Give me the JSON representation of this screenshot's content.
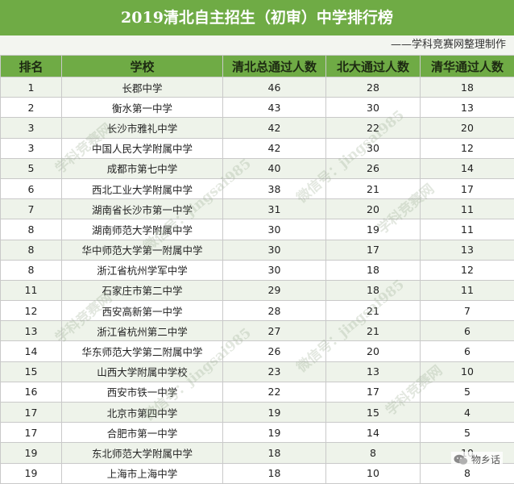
{
  "title": "2019清北自主招生（初审）中学排行榜",
  "subtitle": "——学科竞赛网整理制作",
  "columns": [
    "排名",
    "学校",
    "清北总通过人数",
    "北大通过人数",
    "清华通过人数"
  ],
  "rows": [
    [
      "1",
      "长郡中学",
      "46",
      "28",
      "18"
    ],
    [
      "2",
      "衡水第一中学",
      "43",
      "30",
      "13"
    ],
    [
      "3",
      "长沙市雅礼中学",
      "42",
      "22",
      "20"
    ],
    [
      "3",
      "中国人民大学附属中学",
      "42",
      "30",
      "12"
    ],
    [
      "5",
      "成都市第七中学",
      "40",
      "26",
      "14"
    ],
    [
      "6",
      "西北工业大学附属中学",
      "38",
      "21",
      "17"
    ],
    [
      "7",
      "湖南省长沙市第一中学",
      "31",
      "20",
      "11"
    ],
    [
      "8",
      "湖南师范大学附属中学",
      "30",
      "19",
      "11"
    ],
    [
      "8",
      "华中师范大学第一附属中学",
      "30",
      "17",
      "13"
    ],
    [
      "8",
      "浙江省杭州学军中学",
      "30",
      "18",
      "12"
    ],
    [
      "11",
      "石家庄市第二中学",
      "29",
      "18",
      "11"
    ],
    [
      "12",
      "西安高新第一中学",
      "28",
      "21",
      "7"
    ],
    [
      "13",
      "浙江省杭州第二中学",
      "27",
      "21",
      "6"
    ],
    [
      "14",
      "华东师范大学第二附属中学",
      "26",
      "20",
      "6"
    ],
    [
      "15",
      "山西大学附属中学校",
      "23",
      "13",
      "10"
    ],
    [
      "16",
      "西安市铁一中学",
      "22",
      "17",
      "5"
    ],
    [
      "17",
      "北京市第四中学",
      "19",
      "15",
      "4"
    ],
    [
      "17",
      "合肥市第一中学",
      "19",
      "14",
      "5"
    ],
    [
      "19",
      "东北师范大学附属中学",
      "18",
      "8",
      "10"
    ],
    [
      "19",
      "上海市上海中学",
      "18",
      "10",
      "8"
    ]
  ],
  "watermarks": [
    "学科竞赛网",
    "微信号：jingsai985"
  ],
  "wechat_badge": {
    "icon": "wechat-icon",
    "label": "物乡话"
  },
  "colors": {
    "header_green": "#6fab45",
    "row_tint": "#eef3ea"
  }
}
